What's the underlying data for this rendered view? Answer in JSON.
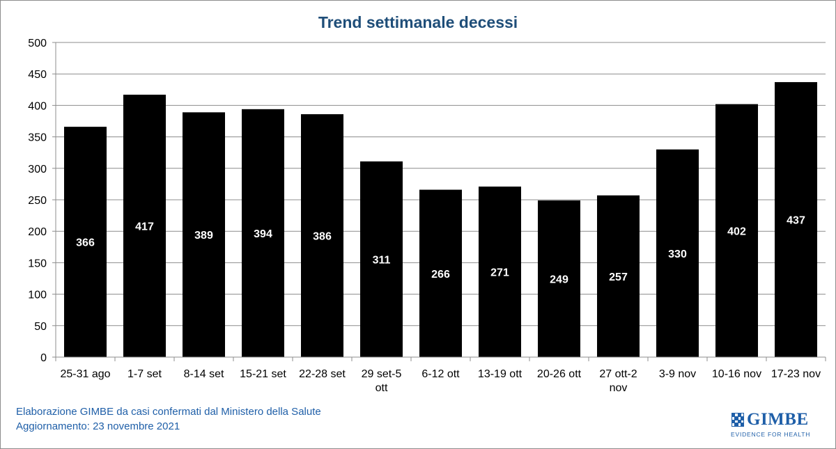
{
  "chart_data": {
    "type": "bar",
    "title": "Trend settimanale decessi",
    "xlabel": "",
    "ylabel": "",
    "ylim": [
      0,
      500
    ],
    "yticks": [
      0,
      50,
      100,
      150,
      200,
      250,
      300,
      350,
      400,
      450,
      500
    ],
    "grid": true,
    "legend": "none",
    "bar_color": "#000000",
    "data_label_color": "#ffffff",
    "categories": [
      [
        "25-31 ago"
      ],
      [
        "1-7 set"
      ],
      [
        "8-14 set"
      ],
      [
        "15-21 set"
      ],
      [
        "22-28 set"
      ],
      [
        "29 set-5",
        "ott"
      ],
      [
        "6-12 ott"
      ],
      [
        "13-19 ott"
      ],
      [
        "20-26 ott"
      ],
      [
        "27 ott-2",
        "nov"
      ],
      [
        "3-9 nov"
      ],
      [
        "10-16 nov"
      ],
      [
        "17-23 nov"
      ]
    ],
    "values": [
      366,
      417,
      389,
      394,
      386,
      311,
      266,
      271,
      249,
      257,
      330,
      402,
      437
    ]
  },
  "footer": {
    "line1": "Elaborazione GIMBE da casi confermati dal Ministero della Salute",
    "line2": "Aggiornamento: 23 novembre 2021"
  },
  "logo": {
    "name": "GIMBE",
    "tagline": "EVIDENCE FOR HEALTH",
    "color": "#1f5fa8"
  }
}
